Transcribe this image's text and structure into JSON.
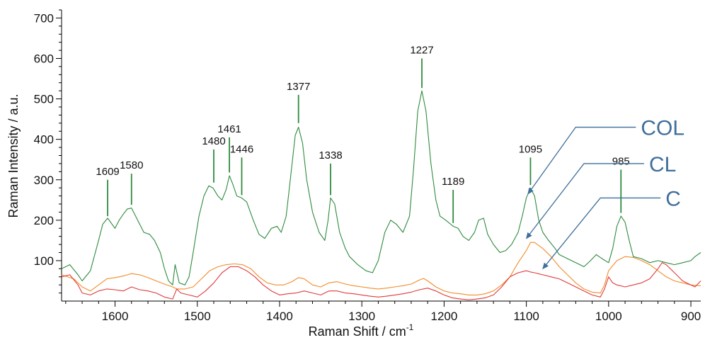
{
  "chart_data": {
    "type": "line",
    "title": "",
    "xlabel": "Raman Shift / cm⁻¹",
    "xlabel_main": "Raman Shift / cm",
    "xlabel_sup": "-1",
    "ylabel": "Raman Intensity / a.u.",
    "xlim": [
      1665,
      888
    ],
    "x_reversed": true,
    "ylim": [
      0,
      720
    ],
    "xticks": [
      1600,
      1500,
      1400,
      1300,
      1200,
      1100,
      1000,
      900
    ],
    "yticks": [
      100,
      200,
      300,
      400,
      500,
      600,
      700
    ],
    "grid": false,
    "series": [
      {
        "name": "COL",
        "color": "#2e8b3e",
        "x": [
          1665,
          1655,
          1645,
          1640,
          1630,
          1620,
          1615,
          1609,
          1600,
          1595,
          1590,
          1585,
          1580,
          1575,
          1565,
          1558,
          1552,
          1545,
          1540,
          1535,
          1530,
          1527,
          1522,
          1515,
          1510,
          1505,
          1498,
          1492,
          1486,
          1481,
          1475,
          1470,
          1465,
          1461,
          1457,
          1452,
          1446,
          1440,
          1432,
          1425,
          1418,
          1410,
          1403,
          1398,
          1392,
          1387,
          1381,
          1377,
          1372,
          1367,
          1360,
          1352,
          1345,
          1341,
          1338,
          1333,
          1327,
          1320,
          1315,
          1305,
          1295,
          1287,
          1280,
          1272,
          1265,
          1258,
          1250,
          1242,
          1237,
          1232,
          1227,
          1222,
          1216,
          1210,
          1205,
          1198,
          1192,
          1189,
          1183,
          1177,
          1170,
          1163,
          1158,
          1152,
          1147,
          1140,
          1132,
          1125,
          1118,
          1110,
          1105,
          1100,
          1095,
          1090,
          1085,
          1080,
          1073,
          1065,
          1060,
          1050,
          1040,
          1030,
          1022,
          1015,
          1008,
          1000,
          995,
          990,
          985,
          980,
          975,
          970,
          960,
          950,
          940,
          930,
          920,
          910,
          900,
          895,
          888
        ],
        "y": [
          80,
          90,
          65,
          50,
          75,
          150,
          190,
          205,
          180,
          200,
          215,
          228,
          230,
          210,
          170,
          165,
          150,
          120,
          80,
          50,
          40,
          90,
          45,
          40,
          60,
          120,
          210,
          260,
          285,
          280,
          260,
          250,
          275,
          310,
          290,
          260,
          255,
          245,
          200,
          165,
          155,
          180,
          185,
          170,
          210,
          300,
          410,
          430,
          390,
          300,
          220,
          170,
          150,
          200,
          255,
          240,
          170,
          130,
          110,
          90,
          75,
          70,
          100,
          170,
          200,
          190,
          170,
          210,
          330,
          470,
          520,
          470,
          340,
          250,
          210,
          200,
          190,
          185,
          180,
          160,
          150,
          170,
          200,
          205,
          165,
          140,
          120,
          125,
          140,
          170,
          210,
          255,
          280,
          260,
          200,
          170,
          150,
          130,
          115,
          105,
          95,
          85,
          100,
          115,
          105,
          95,
          130,
          185,
          210,
          195,
          150,
          110,
          105,
          95,
          100,
          95,
          90,
          95,
          100,
          110,
          120
        ]
      },
      {
        "name": "CL",
        "color": "#f28c28",
        "x": [
          1665,
          1650,
          1640,
          1630,
          1620,
          1610,
          1600,
          1590,
          1580,
          1570,
          1560,
          1550,
          1540,
          1530,
          1525,
          1515,
          1505,
          1495,
          1485,
          1475,
          1465,
          1455,
          1445,
          1435,
          1425,
          1415,
          1405,
          1395,
          1385,
          1377,
          1370,
          1360,
          1350,
          1340,
          1330,
          1320,
          1310,
          1300,
          1290,
          1280,
          1270,
          1260,
          1250,
          1240,
          1230,
          1225,
          1220,
          1210,
          1200,
          1190,
          1180,
          1170,
          1160,
          1150,
          1140,
          1130,
          1120,
          1110,
          1100,
          1095,
          1090,
          1080,
          1070,
          1060,
          1050,
          1040,
          1030,
          1020,
          1010,
          1005,
          1000,
          990,
          980,
          970,
          960,
          950,
          940,
          930,
          920,
          910,
          900,
          888
        ],
        "y": [
          65,
          55,
          35,
          25,
          40,
          55,
          58,
          62,
          68,
          65,
          58,
          50,
          42,
          35,
          30,
          30,
          35,
          55,
          75,
          85,
          90,
          92,
          90,
          80,
          60,
          45,
          40,
          40,
          48,
          58,
          55,
          40,
          35,
          45,
          48,
          42,
          38,
          35,
          32,
          30,
          32,
          35,
          38,
          42,
          52,
          56,
          50,
          35,
          25,
          20,
          18,
          15,
          15,
          18,
          25,
          40,
          60,
          95,
          125,
          145,
          145,
          130,
          110,
          85,
          65,
          45,
          30,
          22,
          20,
          40,
          75,
          100,
          110,
          108,
          100,
          90,
          75,
          60,
          50,
          45,
          40,
          38
        ]
      },
      {
        "name": "C",
        "color": "#e03a3a",
        "x": [
          1665,
          1655,
          1645,
          1640,
          1630,
          1620,
          1610,
          1600,
          1590,
          1580,
          1570,
          1560,
          1550,
          1540,
          1530,
          1525,
          1520,
          1510,
          1500,
          1490,
          1480,
          1470,
          1460,
          1450,
          1440,
          1430,
          1420,
          1410,
          1400,
          1390,
          1380,
          1370,
          1360,
          1350,
          1340,
          1330,
          1320,
          1310,
          1300,
          1290,
          1280,
          1270,
          1260,
          1250,
          1240,
          1230,
          1220,
          1210,
          1200,
          1190,
          1180,
          1170,
          1160,
          1150,
          1140,
          1130,
          1120,
          1110,
          1100,
          1095,
          1090,
          1080,
          1070,
          1060,
          1050,
          1040,
          1030,
          1020,
          1010,
          1005,
          1000,
          995,
          990,
          980,
          970,
          960,
          950,
          940,
          935,
          930,
          920,
          910,
          900,
          895,
          888
        ],
        "y": [
          60,
          65,
          40,
          20,
          15,
          25,
          30,
          28,
          25,
          35,
          28,
          25,
          20,
          10,
          5,
          30,
          20,
          15,
          10,
          25,
          45,
          70,
          85,
          85,
          75,
          60,
          40,
          25,
          15,
          18,
          20,
          25,
          20,
          15,
          25,
          25,
          20,
          18,
          15,
          12,
          10,
          12,
          15,
          18,
          22,
          28,
          32,
          25,
          15,
          8,
          5,
          3,
          5,
          8,
          15,
          35,
          60,
          70,
          75,
          72,
          70,
          65,
          60,
          55,
          45,
          35,
          25,
          15,
          10,
          30,
          60,
          45,
          40,
          35,
          40,
          45,
          55,
          80,
          95,
          90,
          70,
          50,
          40,
          35,
          50
        ]
      }
    ],
    "peak_labels": [
      "1609",
      "1580",
      "1480",
      "1461",
      "1446",
      "1377",
      "1338",
      "1227",
      "1189",
      "1095",
      "985"
    ],
    "peaks": [
      {
        "label": "1609",
        "x": 1609,
        "y_top": 300,
        "y_bottom": 210
      },
      {
        "label": "1580",
        "x": 1580,
        "y_top": 315,
        "y_bottom": 238
      },
      {
        "label": "1480",
        "x": 1480,
        "y_top": 375,
        "y_bottom": 293
      },
      {
        "label": "1461",
        "x": 1461,
        "y_top": 405,
        "y_bottom": 318
      },
      {
        "label": "1446",
        "x": 1446,
        "y_top": 355,
        "y_bottom": 262
      },
      {
        "label": "1377",
        "x": 1377,
        "y_top": 510,
        "y_bottom": 440
      },
      {
        "label": "1338",
        "x": 1338,
        "y_top": 340,
        "y_bottom": 262
      },
      {
        "label": "1227",
        "x": 1227,
        "y_top": 600,
        "y_bottom": 527
      },
      {
        "label": "1189",
        "x": 1189,
        "y_top": 275,
        "y_bottom": 193
      },
      {
        "label": "1095",
        "x": 1095,
        "y_top": 355,
        "y_bottom": 287
      },
      {
        "label": "985",
        "x": 985,
        "y_top": 325,
        "y_bottom": 218
      }
    ],
    "annotations": [
      {
        "text": "COL",
        "target_series": "COL",
        "target": [
          1098,
          265
        ],
        "elbow": [
          1040,
          430
        ]
      },
      {
        "text": "CL",
        "target_series": "CL",
        "target": [
          1100,
          155
        ],
        "elbow": [
          1030,
          340
        ]
      },
      {
        "text": "C",
        "target_series": "C",
        "target": [
          1080,
          80
        ],
        "elbow": [
          1010,
          255
        ]
      }
    ]
  }
}
